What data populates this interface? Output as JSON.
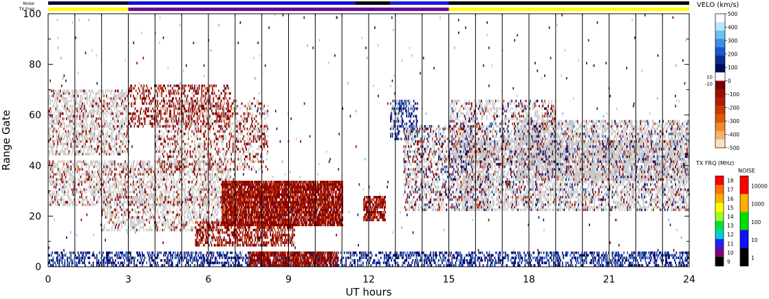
{
  "chart_data": {
    "type": "heatmap",
    "title": "",
    "xlabel": "UT hours",
    "ylabel": "Range Gate",
    "xlim": [
      0,
      24
    ],
    "ylim": [
      0,
      100
    ],
    "x_ticks": [
      "0",
      "3",
      "6",
      "9",
      "12",
      "15",
      "18",
      "21",
      "24"
    ],
    "y_ticks": [
      "0",
      "20",
      "40",
      "60",
      "80",
      "100"
    ],
    "noise_bar_label": "Noise",
    "txfreq_bar_label": "TX Freq",
    "noise_strip": [
      {
        "from": 0,
        "to": 3,
        "color": "#0a0a3a"
      },
      {
        "from": 3,
        "to": 11.5,
        "color": "#1010d8"
      },
      {
        "from": 11.5,
        "to": 12.8,
        "color": "#000000"
      },
      {
        "from": 12.8,
        "to": 15,
        "color": "#1a1ae0"
      },
      {
        "from": 15,
        "to": 24,
        "color": "#000000"
      }
    ],
    "txfreq_strip": [
      {
        "from": 0,
        "to": 3,
        "color": "#ffff00"
      },
      {
        "from": 3,
        "to": 15,
        "color": "#6a0a9a"
      },
      {
        "from": 15,
        "to": 24,
        "color": "#ffff00"
      }
    ],
    "ground_scatter_color": "#c8c8c8",
    "velocity_scale": {
      "title": "VELO (km/s)",
      "ticks": [
        "500",
        "400",
        "300",
        "200",
        "100",
        "0",
        "-100",
        "-200",
        "-300",
        "-400",
        "-500"
      ],
      "gs_labels": [
        "10",
        "-10"
      ],
      "colors": [
        "#ffffff",
        "#b8e8ff",
        "#70c0f0",
        "#3a90e8",
        "#1858c8",
        "#0a2a90",
        "#000a60",
        "#ffffff",
        "#7a0000",
        "#9a1000",
        "#b02000",
        "#c83800",
        "#e05a00",
        "#f08a2a",
        "#f8b070",
        "#fce0c0"
      ]
    },
    "txfreq_scale": {
      "title": "TX FRQ (MHz)",
      "ticks": [
        "18",
        "17",
        "16",
        "15",
        "14",
        "13",
        "12",
        "11",
        "10",
        "9"
      ],
      "colors": [
        "#ff0000",
        "#ff7000",
        "#ffb000",
        "#ffff00",
        "#a0ff20",
        "#00e040",
        "#00d0d0",
        "#2020ff",
        "#800080",
        "#000000"
      ]
    },
    "noise_scale": {
      "title": "NOISE",
      "ticks": [
        "10000",
        "1000",
        "100",
        "10",
        "1"
      ],
      "colors": [
        "#ff0000",
        "#ffb000",
        "#00e000",
        "#1010ff",
        "#000000"
      ]
    },
    "scatter_bands": [
      {
        "t0": 0.0,
        "t1": 3.0,
        "g0": 44,
        "g1": 70,
        "fill": 0.45,
        "gs": 0.8,
        "vel": "neg"
      },
      {
        "t0": 0.0,
        "t1": 6.8,
        "g0": 24,
        "g1": 42,
        "fill": 0.4,
        "gs": 0.75,
        "vel": "neg"
      },
      {
        "t0": 2.0,
        "t1": 6.5,
        "g0": 14,
        "g1": 28,
        "fill": 0.35,
        "gs": 0.75,
        "vel": "neg"
      },
      {
        "t0": 3.0,
        "t1": 6.8,
        "g0": 55,
        "g1": 72,
        "fill": 0.35,
        "gs": 0.15,
        "vel": "neg"
      },
      {
        "t0": 4.0,
        "t1": 8.2,
        "g0": 38,
        "g1": 66,
        "fill": 0.3,
        "gs": 0.55,
        "vel": "neg"
      },
      {
        "t0": 5.5,
        "t1": 9.2,
        "g0": 8,
        "g1": 18,
        "fill": 0.5,
        "gs": 0.05,
        "vel": "neg"
      },
      {
        "t0": 6.5,
        "t1": 11.0,
        "g0": 16,
        "g1": 34,
        "fill": 0.85,
        "gs": 0.0,
        "vel": "neg"
      },
      {
        "t0": 11.8,
        "t1": 12.6,
        "g0": 18,
        "g1": 28,
        "fill": 0.7,
        "gs": 0.0,
        "vel": "neg"
      },
      {
        "t0": 12.8,
        "t1": 13.8,
        "g0": 50,
        "g1": 66,
        "fill": 0.45,
        "gs": 0.3,
        "vel": "pos"
      },
      {
        "t0": 13.3,
        "t1": 16.5,
        "g0": 22,
        "g1": 56,
        "fill": 0.4,
        "gs": 0.6,
        "vel": "mix"
      },
      {
        "t0": 15.0,
        "t1": 19.0,
        "g0": 40,
        "g1": 66,
        "fill": 0.35,
        "gs": 0.65,
        "vel": "mix"
      },
      {
        "t0": 15.5,
        "t1": 24.0,
        "g0": 22,
        "g1": 50,
        "fill": 0.45,
        "gs": 0.75,
        "vel": "mix"
      },
      {
        "t0": 17.5,
        "t1": 24.0,
        "g0": 34,
        "g1": 58,
        "fill": 0.5,
        "gs": 0.8,
        "vel": "mix"
      },
      {
        "t0": 0.0,
        "t1": 24.0,
        "g0": 0,
        "g1": 6,
        "fill": 0.4,
        "gs": 0.05,
        "vel": "pos"
      },
      {
        "t0": 7.5,
        "t1": 10.8,
        "g0": 0,
        "g1": 6,
        "fill": 0.8,
        "gs": 0.0,
        "vel": "neg"
      }
    ]
  }
}
